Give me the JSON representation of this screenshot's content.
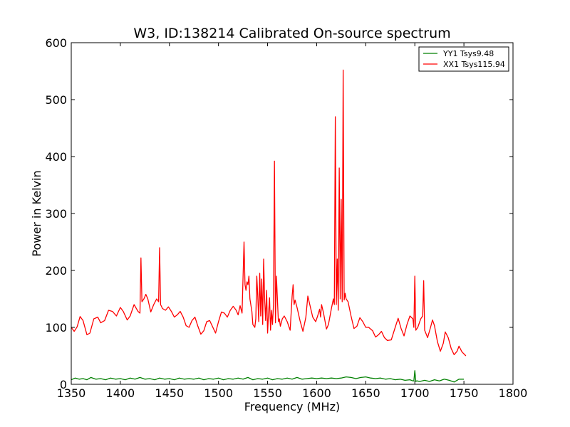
{
  "chart_data": {
    "type": "line",
    "title": "W3, ID:138214 Calibrated On-source spectrum",
    "xlabel": "Frequency (MHz)",
    "ylabel": "Power in Kelvin",
    "xlim": [
      1350,
      1800
    ],
    "ylim": [
      0,
      600
    ],
    "xticks": [
      1350,
      1400,
      1450,
      1500,
      1550,
      1600,
      1650,
      1700,
      1750,
      1800
    ],
    "yticks": [
      0,
      100,
      200,
      300,
      400,
      500,
      600
    ],
    "grid": false,
    "legend_position": "top-right",
    "series": [
      {
        "name": "YY1 Tsys9.48",
        "color": "#008000",
        "points": [
          [
            1350,
            8
          ],
          [
            1354,
            11
          ],
          [
            1358,
            9
          ],
          [
            1362,
            10
          ],
          [
            1366,
            8
          ],
          [
            1370,
            12
          ],
          [
            1375,
            9
          ],
          [
            1380,
            10
          ],
          [
            1385,
            8
          ],
          [
            1390,
            11
          ],
          [
            1395,
            9
          ],
          [
            1400,
            10
          ],
          [
            1405,
            8
          ],
          [
            1410,
            11
          ],
          [
            1415,
            9
          ],
          [
            1420,
            12
          ],
          [
            1425,
            9
          ],
          [
            1430,
            10
          ],
          [
            1435,
            8
          ],
          [
            1440,
            11
          ],
          [
            1445,
            9
          ],
          [
            1450,
            10
          ],
          [
            1455,
            8
          ],
          [
            1460,
            11
          ],
          [
            1465,
            9
          ],
          [
            1470,
            10
          ],
          [
            1475,
            9
          ],
          [
            1480,
            11
          ],
          [
            1485,
            8
          ],
          [
            1490,
            10
          ],
          [
            1495,
            9
          ],
          [
            1500,
            11
          ],
          [
            1505,
            8
          ],
          [
            1510,
            10
          ],
          [
            1515,
            9
          ],
          [
            1520,
            11
          ],
          [
            1525,
            9
          ],
          [
            1530,
            12
          ],
          [
            1535,
            8
          ],
          [
            1540,
            10
          ],
          [
            1545,
            9
          ],
          [
            1550,
            11
          ],
          [
            1555,
            8
          ],
          [
            1560,
            10
          ],
          [
            1565,
            9
          ],
          [
            1570,
            11
          ],
          [
            1575,
            9
          ],
          [
            1580,
            12
          ],
          [
            1585,
            9
          ],
          [
            1590,
            10
          ],
          [
            1595,
            11
          ],
          [
            1600,
            10
          ],
          [
            1605,
            11
          ],
          [
            1610,
            10
          ],
          [
            1615,
            11
          ],
          [
            1620,
            10
          ],
          [
            1625,
            11
          ],
          [
            1630,
            13
          ],
          [
            1635,
            12
          ],
          [
            1640,
            10
          ],
          [
            1645,
            12
          ],
          [
            1650,
            13
          ],
          [
            1655,
            11
          ],
          [
            1660,
            10
          ],
          [
            1665,
            11
          ],
          [
            1670,
            9
          ],
          [
            1675,
            10
          ],
          [
            1680,
            8
          ],
          [
            1685,
            9
          ],
          [
            1690,
            7
          ],
          [
            1695,
            8
          ],
          [
            1698,
            6
          ],
          [
            1699,
            6
          ],
          [
            1700,
            24
          ],
          [
            1701,
            5
          ],
          [
            1702,
            6
          ],
          [
            1705,
            5
          ],
          [
            1710,
            7
          ],
          [
            1715,
            5
          ],
          [
            1720,
            8
          ],
          [
            1725,
            6
          ],
          [
            1730,
            9
          ],
          [
            1735,
            7
          ],
          [
            1740,
            4
          ],
          [
            1745,
            9
          ],
          [
            1750,
            9
          ]
        ]
      },
      {
        "name": "XX1 Tsys115.94",
        "color": "#ff0000",
        "points": [
          [
            1350,
            100
          ],
          [
            1353,
            93
          ],
          [
            1356,
            101
          ],
          [
            1359,
            119
          ],
          [
            1362,
            112
          ],
          [
            1366,
            87
          ],
          [
            1369,
            90
          ],
          [
            1373,
            115
          ],
          [
            1377,
            118
          ],
          [
            1380,
            108
          ],
          [
            1384,
            112
          ],
          [
            1388,
            130
          ],
          [
            1392,
            128
          ],
          [
            1396,
            120
          ],
          [
            1400,
            135
          ],
          [
            1403,
            128
          ],
          [
            1407,
            113
          ],
          [
            1410,
            120
          ],
          [
            1414,
            140
          ],
          [
            1418,
            128
          ],
          [
            1420,
            125
          ],
          [
            1421,
            222
          ],
          [
            1422,
            145
          ],
          [
            1424,
            150
          ],
          [
            1426,
            158
          ],
          [
            1428,
            150
          ],
          [
            1431,
            127
          ],
          [
            1434,
            140
          ],
          [
            1437,
            150
          ],
          [
            1439,
            145
          ],
          [
            1440,
            240
          ],
          [
            1441,
            140
          ],
          [
            1443,
            133
          ],
          [
            1446,
            130
          ],
          [
            1449,
            136
          ],
          [
            1452,
            128
          ],
          [
            1455,
            118
          ],
          [
            1458,
            122
          ],
          [
            1461,
            128
          ],
          [
            1464,
            118
          ],
          [
            1467,
            103
          ],
          [
            1470,
            100
          ],
          [
            1473,
            112
          ],
          [
            1476,
            118
          ],
          [
            1479,
            102
          ],
          [
            1482,
            88
          ],
          [
            1485,
            94
          ],
          [
            1488,
            110
          ],
          [
            1491,
            112
          ],
          [
            1494,
            101
          ],
          [
            1497,
            90
          ],
          [
            1500,
            110
          ],
          [
            1503,
            127
          ],
          [
            1506,
            125
          ],
          [
            1509,
            118
          ],
          [
            1512,
            130
          ],
          [
            1515,
            137
          ],
          [
            1518,
            130
          ],
          [
            1520,
            122
          ],
          [
            1522,
            138
          ],
          [
            1524,
            125
          ],
          [
            1526,
            250
          ],
          [
            1527,
            175
          ],
          [
            1528,
            165
          ],
          [
            1529,
            180
          ],
          [
            1530,
            175
          ],
          [
            1531,
            190
          ],
          [
            1532,
            150
          ],
          [
            1534,
            128
          ],
          [
            1535,
            105
          ],
          [
            1537,
            100
          ],
          [
            1538,
            115
          ],
          [
            1539,
            190
          ],
          [
            1540,
            155
          ],
          [
            1541,
            110
          ],
          [
            1542,
            195
          ],
          [
            1543,
            120
          ],
          [
            1544,
            185
          ],
          [
            1545,
            105
          ],
          [
            1546,
            220
          ],
          [
            1547,
            150
          ],
          [
            1548,
            112
          ],
          [
            1549,
            165
          ],
          [
            1550,
            90
          ],
          [
            1551,
            125
          ],
          [
            1552,
            152
          ],
          [
            1553,
            95
          ],
          [
            1554,
            130
          ],
          [
            1555,
            105
          ],
          [
            1556,
            140
          ],
          [
            1557,
            392
          ],
          [
            1558,
            108
          ],
          [
            1559,
            190
          ],
          [
            1560,
            150
          ],
          [
            1561,
            110
          ],
          [
            1562,
            115
          ],
          [
            1563,
            102
          ],
          [
            1565,
            115
          ],
          [
            1567,
            120
          ],
          [
            1570,
            110
          ],
          [
            1573,
            95
          ],
          [
            1575,
            155
          ],
          [
            1576,
            175
          ],
          [
            1577,
            140
          ],
          [
            1578,
            148
          ],
          [
            1580,
            135
          ],
          [
            1583,
            112
          ],
          [
            1586,
            93
          ],
          [
            1589,
            118
          ],
          [
            1591,
            155
          ],
          [
            1593,
            140
          ],
          [
            1596,
            118
          ],
          [
            1599,
            110
          ],
          [
            1601,
            120
          ],
          [
            1603,
            132
          ],
          [
            1604,
            118
          ],
          [
            1605,
            140
          ],
          [
            1607,
            125
          ],
          [
            1610,
            97
          ],
          [
            1612,
            105
          ],
          [
            1615,
            133
          ],
          [
            1617,
            150
          ],
          [
            1618,
            140
          ],
          [
            1619,
            470
          ],
          [
            1620,
            140
          ],
          [
            1621,
            220
          ],
          [
            1622,
            130
          ],
          [
            1623,
            380
          ],
          [
            1624,
            150
          ],
          [
            1625,
            325
          ],
          [
            1626,
            145
          ],
          [
            1627,
            552
          ],
          [
            1628,
            148
          ],
          [
            1629,
            160
          ],
          [
            1630,
            150
          ],
          [
            1632,
            145
          ],
          [
            1635,
            120
          ],
          [
            1638,
            98
          ],
          [
            1641,
            102
          ],
          [
            1644,
            117
          ],
          [
            1647,
            110
          ],
          [
            1650,
            100
          ],
          [
            1653,
            100
          ],
          [
            1657,
            94
          ],
          [
            1660,
            83
          ],
          [
            1663,
            87
          ],
          [
            1666,
            93
          ],
          [
            1669,
            82
          ],
          [
            1672,
            77
          ],
          [
            1676,
            78
          ],
          [
            1680,
            100
          ],
          [
            1683,
            116
          ],
          [
            1686,
            98
          ],
          [
            1689,
            85
          ],
          [
            1692,
            105
          ],
          [
            1695,
            120
          ],
          [
            1698,
            115
          ],
          [
            1699,
            100
          ],
          [
            1700,
            190
          ],
          [
            1701,
            95
          ],
          [
            1703,
            100
          ],
          [
            1706,
            115
          ],
          [
            1708,
            120
          ],
          [
            1709,
            182
          ],
          [
            1710,
            95
          ],
          [
            1713,
            82
          ],
          [
            1716,
            100
          ],
          [
            1718,
            113
          ],
          [
            1720,
            103
          ],
          [
            1723,
            75
          ],
          [
            1726,
            58
          ],
          [
            1729,
            72
          ],
          [
            1731,
            92
          ],
          [
            1734,
            82
          ],
          [
            1737,
            63
          ],
          [
            1740,
            52
          ],
          [
            1743,
            58
          ],
          [
            1745,
            67
          ],
          [
            1748,
            57
          ],
          [
            1752,
            50
          ]
        ]
      }
    ]
  }
}
